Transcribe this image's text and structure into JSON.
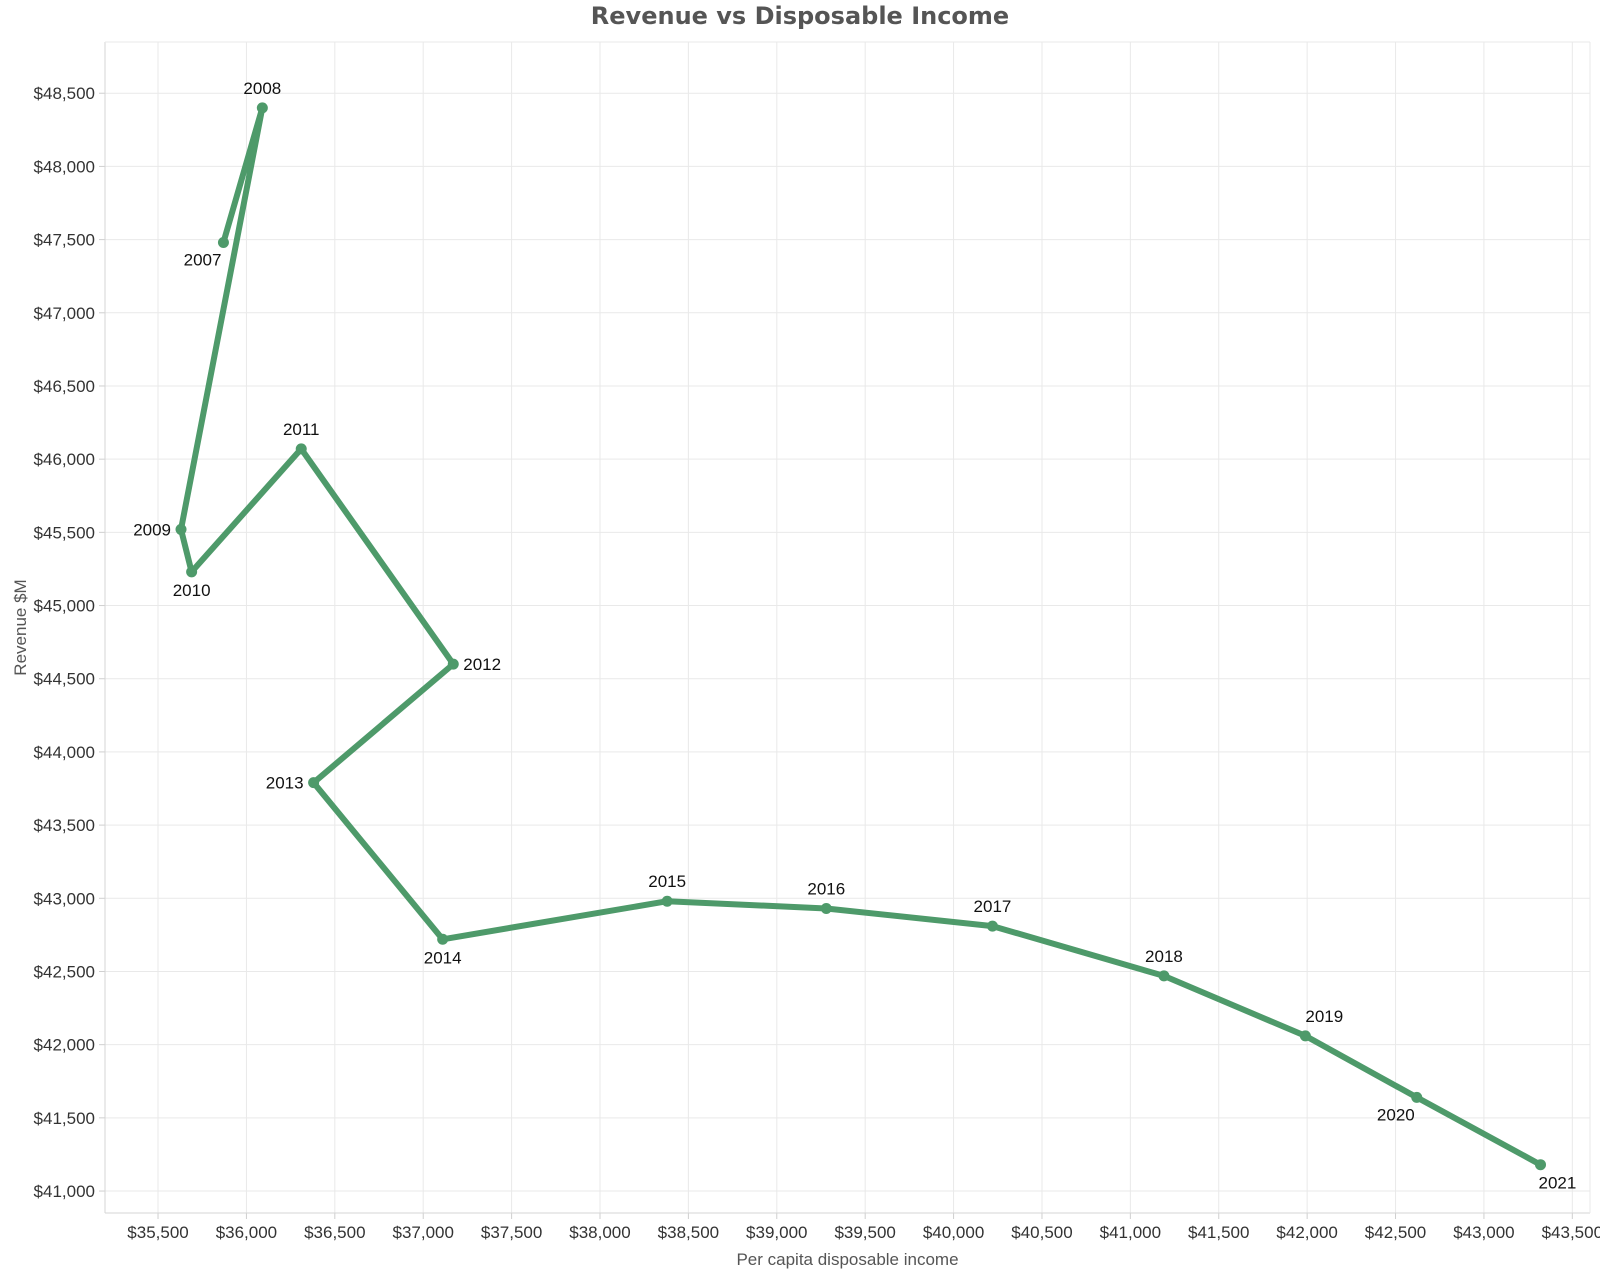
{
  "chart_data": {
    "type": "line",
    "title": "Revenue vs Disposable Income",
    "xlabel": "Per capita disposable income",
    "ylabel": "Revenue $M",
    "xlim": [
      35200,
      43600
    ],
    "ylim": [
      40850,
      48850
    ],
    "x_ticks": [
      35500,
      36000,
      36500,
      37000,
      37500,
      38000,
      38500,
      39000,
      39500,
      40000,
      40500,
      41000,
      41500,
      42000,
      42500,
      43000,
      43500
    ],
    "x_tick_labels": [
      "$35,500",
      "$36,000",
      "$36,500",
      "$37,000",
      "$37,500",
      "$38,000",
      "$38,500",
      "$39,000",
      "$39,500",
      "$40,000",
      "$40,500",
      "$41,000",
      "$41,500",
      "$42,000",
      "$42,500",
      "$43,000",
      "$43,500"
    ],
    "y_ticks": [
      41000,
      41500,
      42000,
      42500,
      43000,
      43500,
      44000,
      44500,
      45000,
      45500,
      46000,
      46500,
      47000,
      47500,
      48000,
      48500
    ],
    "y_tick_labels": [
      "$41,000",
      "$41,500",
      "$42,000",
      "$42,500",
      "$43,000",
      "$43,500",
      "$44,000",
      "$44,500",
      "$45,000",
      "$45,500",
      "$46,000",
      "$46,500",
      "$47,000",
      "$47,500",
      "$48,000",
      "$48,500"
    ],
    "grid": true,
    "line_color": "#4e9a6a",
    "series": [
      {
        "points": [
          {
            "label": "2007",
            "x": 35870,
            "y": 47480,
            "label_pos": "below-left"
          },
          {
            "label": "2008",
            "x": 36090,
            "y": 48400,
            "label_pos": "above"
          },
          {
            "label": "2009",
            "x": 35630,
            "y": 45520,
            "label_pos": "left"
          },
          {
            "label": "2010",
            "x": 35690,
            "y": 45230,
            "label_pos": "below"
          },
          {
            "label": "2011",
            "x": 36310,
            "y": 46070,
            "label_pos": "above"
          },
          {
            "label": "2012",
            "x": 37170,
            "y": 44600,
            "label_pos": "right"
          },
          {
            "label": "2013",
            "x": 36380,
            "y": 43790,
            "label_pos": "left"
          },
          {
            "label": "2014",
            "x": 37110,
            "y": 42720,
            "label_pos": "below"
          },
          {
            "label": "2015",
            "x": 38380,
            "y": 42980,
            "label_pos": "above"
          },
          {
            "label": "2016",
            "x": 39280,
            "y": 42930,
            "label_pos": "above"
          },
          {
            "label": "2017",
            "x": 40220,
            "y": 42810,
            "label_pos": "above"
          },
          {
            "label": "2018",
            "x": 41190,
            "y": 42470,
            "label_pos": "above"
          },
          {
            "label": "2019",
            "x": 41990,
            "y": 42060,
            "label_pos": "above-right"
          },
          {
            "label": "2020",
            "x": 42620,
            "y": 41640,
            "label_pos": "below-left"
          },
          {
            "label": "2021",
            "x": 43320,
            "y": 41180,
            "label_pos": "below-right"
          }
        ]
      }
    ]
  }
}
